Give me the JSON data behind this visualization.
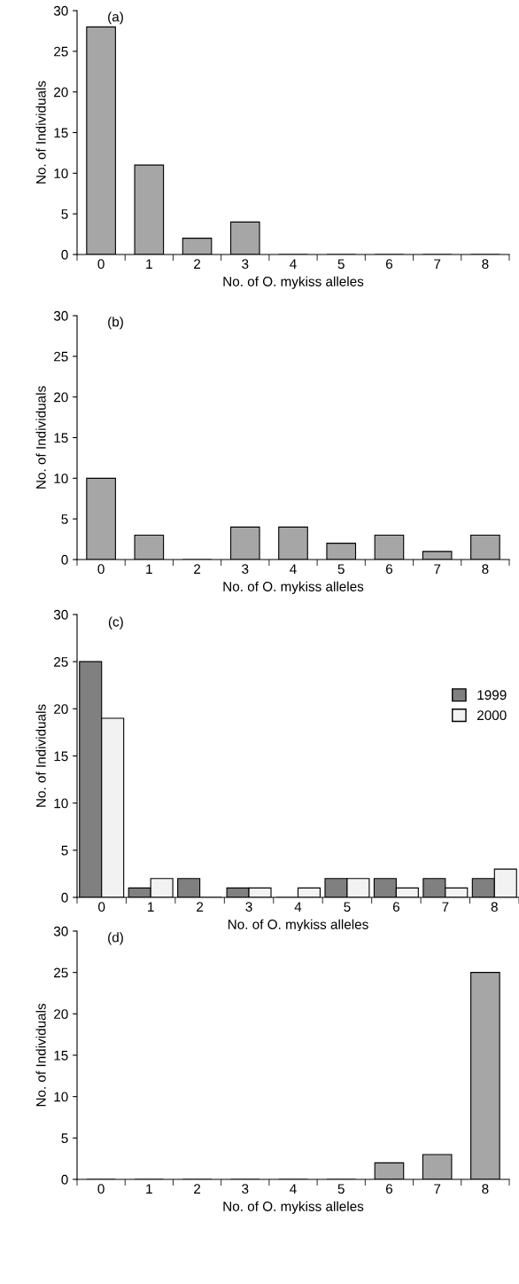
{
  "chart_data": [
    {
      "type": "bar",
      "title": "(a)",
      "xlabel": "No. of O. mykiss alleles",
      "ylabel": "No. of Individuals",
      "categories": [
        "0",
        "1",
        "2",
        "3",
        "4",
        "5",
        "6",
        "7",
        "8"
      ],
      "series": [
        {
          "color": "#a6a6a6",
          "values": [
            28,
            11,
            2,
            4,
            0,
            0,
            0,
            0,
            0
          ]
        }
      ],
      "ylim": [
        0,
        30
      ],
      "yticks": [
        0,
        5,
        10,
        15,
        20,
        25,
        30
      ],
      "grid": false,
      "legend": false
    },
    {
      "type": "bar",
      "title": "(b)",
      "xlabel": "No. of O. mykiss alleles",
      "ylabel": "No. of Individuals",
      "categories": [
        "0",
        "1",
        "2",
        "3",
        "4",
        "5",
        "6",
        "7",
        "8"
      ],
      "series": [
        {
          "color": "#a6a6a6",
          "values": [
            10,
            3,
            0,
            4,
            4,
            2,
            3,
            1,
            3
          ]
        }
      ],
      "ylim": [
        0,
        30
      ],
      "yticks": [
        0,
        5,
        10,
        15,
        20,
        25,
        30
      ],
      "grid": false,
      "legend": false
    },
    {
      "type": "bar",
      "title": "(c)",
      "xlabel": "No. of O. mykiss alleles",
      "ylabel": "No. of Individuals",
      "categories": [
        "0",
        "1",
        "2",
        "3",
        "4",
        "5",
        "6",
        "7",
        "8"
      ],
      "series": [
        {
          "name": "1999",
          "color": "#808080",
          "values": [
            25,
            1,
            2,
            1,
            0,
            2,
            2,
            2,
            2
          ]
        },
        {
          "name": "2000",
          "color": "#f2f2f2",
          "values": [
            19,
            2,
            0,
            1,
            1,
            2,
            1,
            1,
            3
          ]
        }
      ],
      "ylim": [
        0,
        30
      ],
      "yticks": [
        0,
        5,
        10,
        15,
        20,
        25,
        30
      ],
      "grid": false,
      "legend": "right"
    },
    {
      "type": "bar",
      "title": "(d)",
      "xlabel": "No. of O. mykiss alleles",
      "ylabel": "No. of Individuals",
      "categories": [
        "0",
        "1",
        "2",
        "3",
        "4",
        "5",
        "6",
        "7",
        "8"
      ],
      "series": [
        {
          "color": "#a6a6a6",
          "values": [
            0,
            0,
            0,
            0,
            0,
            0,
            2,
            3,
            25
          ]
        }
      ],
      "ylim": [
        0,
        30
      ],
      "yticks": [
        0,
        5,
        10,
        15,
        20,
        25,
        30
      ],
      "grid": false,
      "legend": false
    }
  ]
}
